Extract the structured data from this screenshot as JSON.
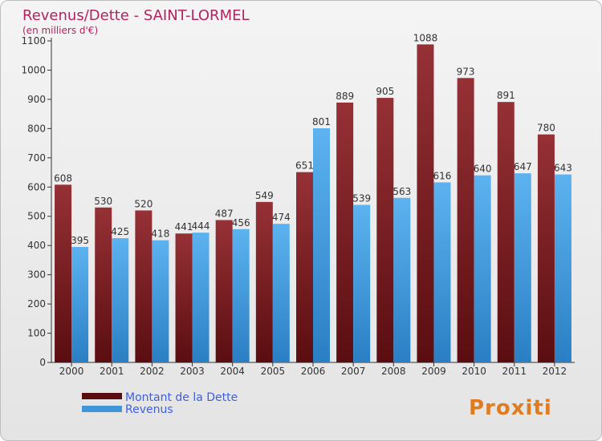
{
  "chart_data": {
    "type": "bar",
    "title": "Revenus/Dette - SAINT-LORMEL",
    "subtitle": "(en milliers d'€)",
    "categories": [
      "2000",
      "2001",
      "2002",
      "2003",
      "2004",
      "2005",
      "2006",
      "2007",
      "2008",
      "2009",
      "2010",
      "2011",
      "2012"
    ],
    "series": [
      {
        "name": "Montant de la Dette",
        "values": [
          608,
          530,
          520,
          441,
          487,
          549,
          651,
          889,
          905,
          1088,
          973,
          891,
          780
        ],
        "color": "#7a1f22"
      },
      {
        "name": "Revenus",
        "values": [
          395,
          425,
          418,
          444,
          456,
          474,
          801,
          539,
          563,
          616,
          640,
          647,
          643
        ],
        "color": "#3f97da"
      }
    ],
    "ylim": [
      0,
      1100
    ],
    "yticks": [
      0,
      100,
      200,
      300,
      400,
      500,
      600,
      700,
      800,
      900,
      1000,
      1100
    ],
    "grid": false,
    "legend_position": "bottom-left"
  },
  "colors": {
    "title": "#b0245f",
    "axis_text": "#333333",
    "debt_dark": "#5a0d10",
    "debt_light": "#963136",
    "revenue_dark": "#2a7fc4",
    "revenue_light": "#5cb3ef"
  },
  "logo": {
    "text": "Proxiti"
  }
}
